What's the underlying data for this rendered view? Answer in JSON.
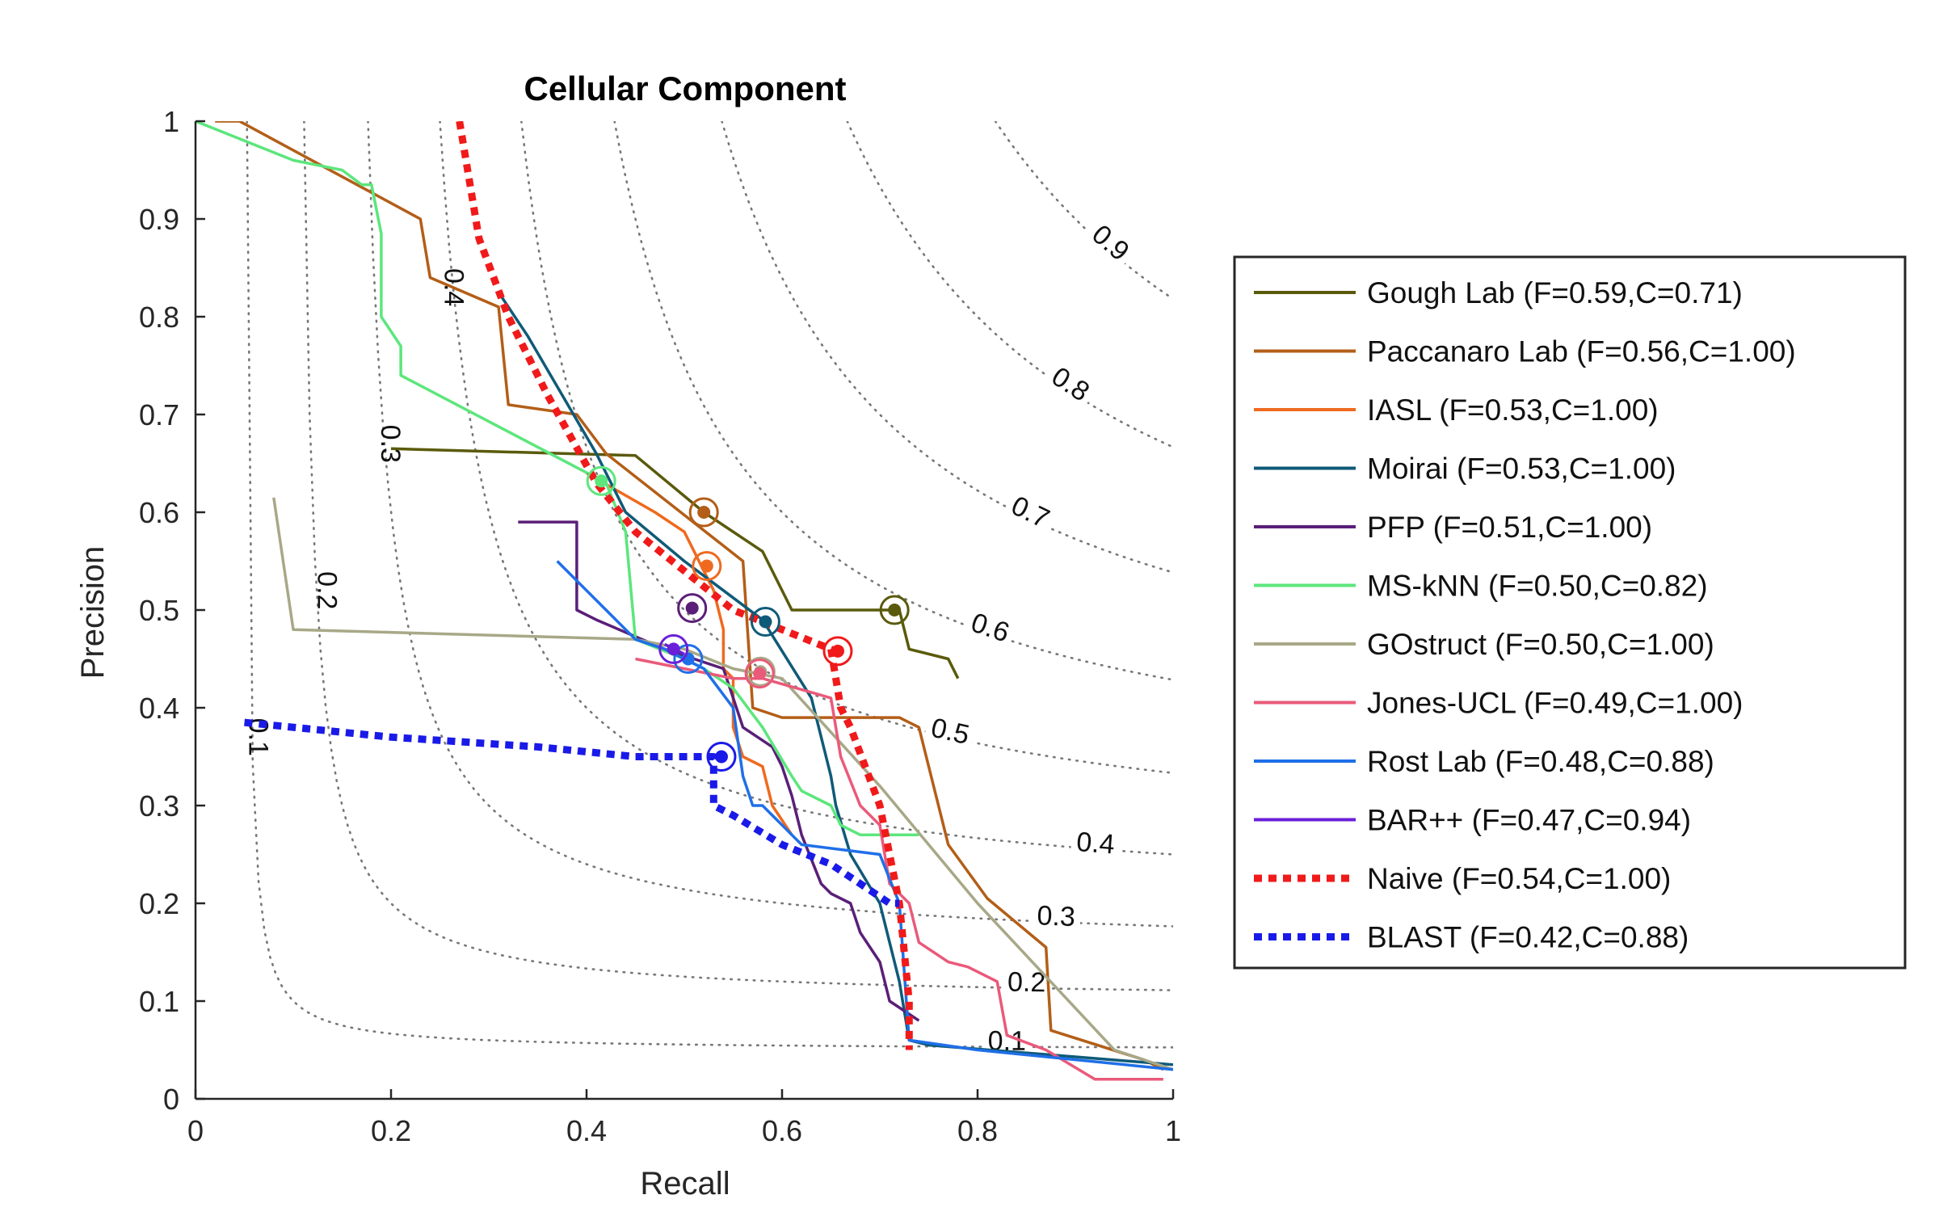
{
  "chart_data": {
    "type": "line",
    "title": "Cellular Component",
    "xlabel": "Recall",
    "ylabel": "Precision",
    "xlim": [
      0,
      1
    ],
    "ylim": [
      0,
      1
    ],
    "xticks": [
      "0",
      "0.2",
      "0.4",
      "0.6",
      "0.8",
      "1"
    ],
    "yticks": [
      "0",
      "0.1",
      "0.2",
      "0.3",
      "0.4",
      "0.5",
      "0.6",
      "0.7",
      "0.8",
      "0.9",
      "1"
    ],
    "legend_position": "right",
    "fscore_contours": [
      0.1,
      0.2,
      0.3,
      0.4,
      0.5,
      0.6,
      0.7,
      0.8,
      0.9
    ],
    "fscore_labels": [
      "0.1",
      "0.2",
      "0.3",
      "0.4",
      "0.5",
      "0.6",
      "0.7",
      "0.8",
      "0.9"
    ],
    "series": [
      {
        "name": "Gough Lab (F=0.59,C=0.71)",
        "color": "#5a5a0c",
        "style": "solid",
        "x": [
          0.2,
          0.45,
          0.52,
          0.58,
          0.61,
          0.72,
          0.73,
          0.77,
          0.78
        ],
        "y": [
          0.665,
          0.658,
          0.6,
          0.56,
          0.5,
          0.5,
          0.46,
          0.45,
          0.43
        ],
        "marker": [
          0.715,
          0.5
        ]
      },
      {
        "name": "Paccanaro Lab (F=0.56,C=1.00)",
        "color": "#b35e18",
        "style": "solid",
        "x": [
          0.02,
          0.045,
          0.23,
          0.24,
          0.31,
          0.32,
          0.39,
          0.42,
          0.56,
          0.57,
          0.6,
          0.72,
          0.74,
          0.77,
          0.81,
          0.87,
          0.875,
          0.97,
          0.99
        ],
        "y": [
          1.0,
          1.0,
          0.9,
          0.84,
          0.81,
          0.71,
          0.7,
          0.66,
          0.55,
          0.4,
          0.39,
          0.39,
          0.38,
          0.26,
          0.205,
          0.155,
          0.07,
          0.04,
          0.03
        ],
        "marker": [
          0.52,
          0.6
        ]
      },
      {
        "name": "IASL (F=0.53,C=1.00)",
        "color": "#ef6a1f",
        "style": "solid",
        "x": [
          0.4,
          0.47,
          0.5,
          0.52,
          0.53,
          0.54,
          0.54,
          0.55,
          0.55,
          0.56,
          0.58,
          0.59,
          0.61
        ],
        "y": [
          0.64,
          0.6,
          0.58,
          0.54,
          0.52,
          0.48,
          0.44,
          0.43,
          0.38,
          0.35,
          0.34,
          0.3,
          0.27
        ],
        "marker": [
          0.523,
          0.545
        ]
      },
      {
        "name": "Moirai (F=0.53,C=1.00)",
        "color": "#0f5a78",
        "style": "solid",
        "x": [
          0.31,
          0.34,
          0.41,
          0.44,
          0.5,
          0.58,
          0.63,
          0.65,
          0.655,
          0.67,
          0.7,
          0.72,
          0.73,
          0.75,
          1.0
        ],
        "y": [
          0.825,
          0.78,
          0.66,
          0.6,
          0.55,
          0.49,
          0.41,
          0.33,
          0.3,
          0.25,
          0.2,
          0.12,
          0.06,
          0.055,
          0.035
        ],
        "marker": [
          0.583,
          0.488
        ]
      },
      {
        "name": "PFP (F=0.51,C=1.00)",
        "color": "#5a1f78",
        "style": "solid",
        "x": [
          0.33,
          0.39,
          0.39,
          0.41,
          0.48,
          0.51,
          0.54,
          0.56,
          0.59,
          0.6,
          0.61,
          0.62,
          0.64,
          0.65,
          0.67,
          0.68,
          0.7,
          0.71,
          0.74
        ],
        "y": [
          0.59,
          0.59,
          0.5,
          0.49,
          0.46,
          0.45,
          0.44,
          0.38,
          0.36,
          0.34,
          0.31,
          0.27,
          0.22,
          0.21,
          0.2,
          0.17,
          0.14,
          0.1,
          0.08
        ],
        "marker": [
          0.508,
          0.502
        ]
      },
      {
        "name": "MS-kNN (F=0.50,C=0.82)",
        "color": "#5ce67c",
        "style": "solid",
        "x": [
          0.0,
          0.1,
          0.15,
          0.17,
          0.18,
          0.19,
          0.19,
          0.21,
          0.21,
          0.42,
          0.44,
          0.45,
          0.5,
          0.52,
          0.55,
          0.58,
          0.61,
          0.62,
          0.65,
          0.66,
          0.68,
          0.74
        ],
        "y": [
          1.0,
          0.96,
          0.95,
          0.935,
          0.935,
          0.885,
          0.8,
          0.77,
          0.74,
          0.63,
          0.58,
          0.47,
          0.45,
          0.44,
          0.42,
          0.38,
          0.33,
          0.315,
          0.3,
          0.28,
          0.27,
          0.27
        ],
        "marker": [
          0.415,
          0.632
        ]
      },
      {
        "name": "GOstruct (F=0.50,C=1.00)",
        "color": "#a8a888",
        "style": "solid",
        "x": [
          0.08,
          0.1,
          0.45,
          0.5,
          0.55,
          0.6,
          0.7,
          0.8,
          0.94,
          1.0
        ],
        "y": [
          0.615,
          0.48,
          0.47,
          0.46,
          0.44,
          0.43,
          0.32,
          0.2,
          0.05,
          0.03
        ],
        "marker": [
          0.578,
          0.437
        ]
      },
      {
        "name": "Jones-UCL (F=0.49,C=1.00)",
        "color": "#ea5a7a",
        "style": "solid",
        "x": [
          0.45,
          0.5,
          0.55,
          0.58,
          0.65,
          0.66,
          0.68,
          0.7,
          0.71,
          0.73,
          0.74,
          0.77,
          0.79,
          0.82,
          0.83,
          0.87,
          0.92,
          0.99
        ],
        "y": [
          0.45,
          0.44,
          0.43,
          0.43,
          0.41,
          0.35,
          0.3,
          0.28,
          0.22,
          0.2,
          0.16,
          0.14,
          0.135,
          0.12,
          0.065,
          0.05,
          0.02,
          0.02
        ],
        "marker": [
          0.577,
          0.435
        ]
      },
      {
        "name": "Rost Lab (F=0.48,C=0.88)",
        "color": "#1f6fe8",
        "style": "solid",
        "x": [
          0.37,
          0.4,
          0.44,
          0.45,
          0.48,
          0.5,
          0.52,
          0.55,
          0.56,
          0.57,
          0.58,
          0.6,
          0.62,
          0.7,
          0.72,
          0.73,
          0.8,
          1.0
        ],
        "y": [
          0.55,
          0.52,
          0.48,
          0.47,
          0.46,
          0.45,
          0.44,
          0.4,
          0.33,
          0.3,
          0.3,
          0.28,
          0.26,
          0.25,
          0.2,
          0.06,
          0.05,
          0.03
        ],
        "marker": [
          0.504,
          0.45
        ]
      },
      {
        "name": "BAR++ (F=0.47,C=0.94)",
        "color": "#6a1fd8",
        "style": "solid",
        "x": [
          0.48,
          0.49,
          0.5
        ],
        "y": [
          0.465,
          0.46,
          0.455
        ],
        "marker": [
          0.489,
          0.46
        ]
      },
      {
        "name": "Naive (F=0.54,C=1.00)",
        "color": "#f01a1a",
        "style": "dotted",
        "x": [
          0.27,
          0.29,
          0.32,
          0.36,
          0.41,
          0.45,
          0.5,
          0.55,
          0.6,
          0.65,
          0.66,
          0.67,
          0.7,
          0.71,
          0.72,
          0.73,
          0.73
        ],
        "y": [
          1.0,
          0.88,
          0.8,
          0.72,
          0.63,
          0.58,
          0.54,
          0.5,
          0.48,
          0.46,
          0.4,
          0.38,
          0.3,
          0.25,
          0.2,
          0.1,
          0.05
        ],
        "marker": [
          0.657,
          0.458
        ]
      },
      {
        "name": "BLAST (F=0.42,C=0.88)",
        "color": "#1a1ae8",
        "style": "dotted",
        "x": [
          0.05,
          0.2,
          0.35,
          0.45,
          0.53,
          0.53,
          0.55,
          0.6,
          0.65,
          0.68,
          0.71,
          0.72
        ],
        "y": [
          0.385,
          0.37,
          0.36,
          0.35,
          0.35,
          0.3,
          0.29,
          0.26,
          0.24,
          0.22,
          0.2,
          0.2
        ],
        "marker": [
          0.538,
          0.35
        ]
      }
    ]
  }
}
